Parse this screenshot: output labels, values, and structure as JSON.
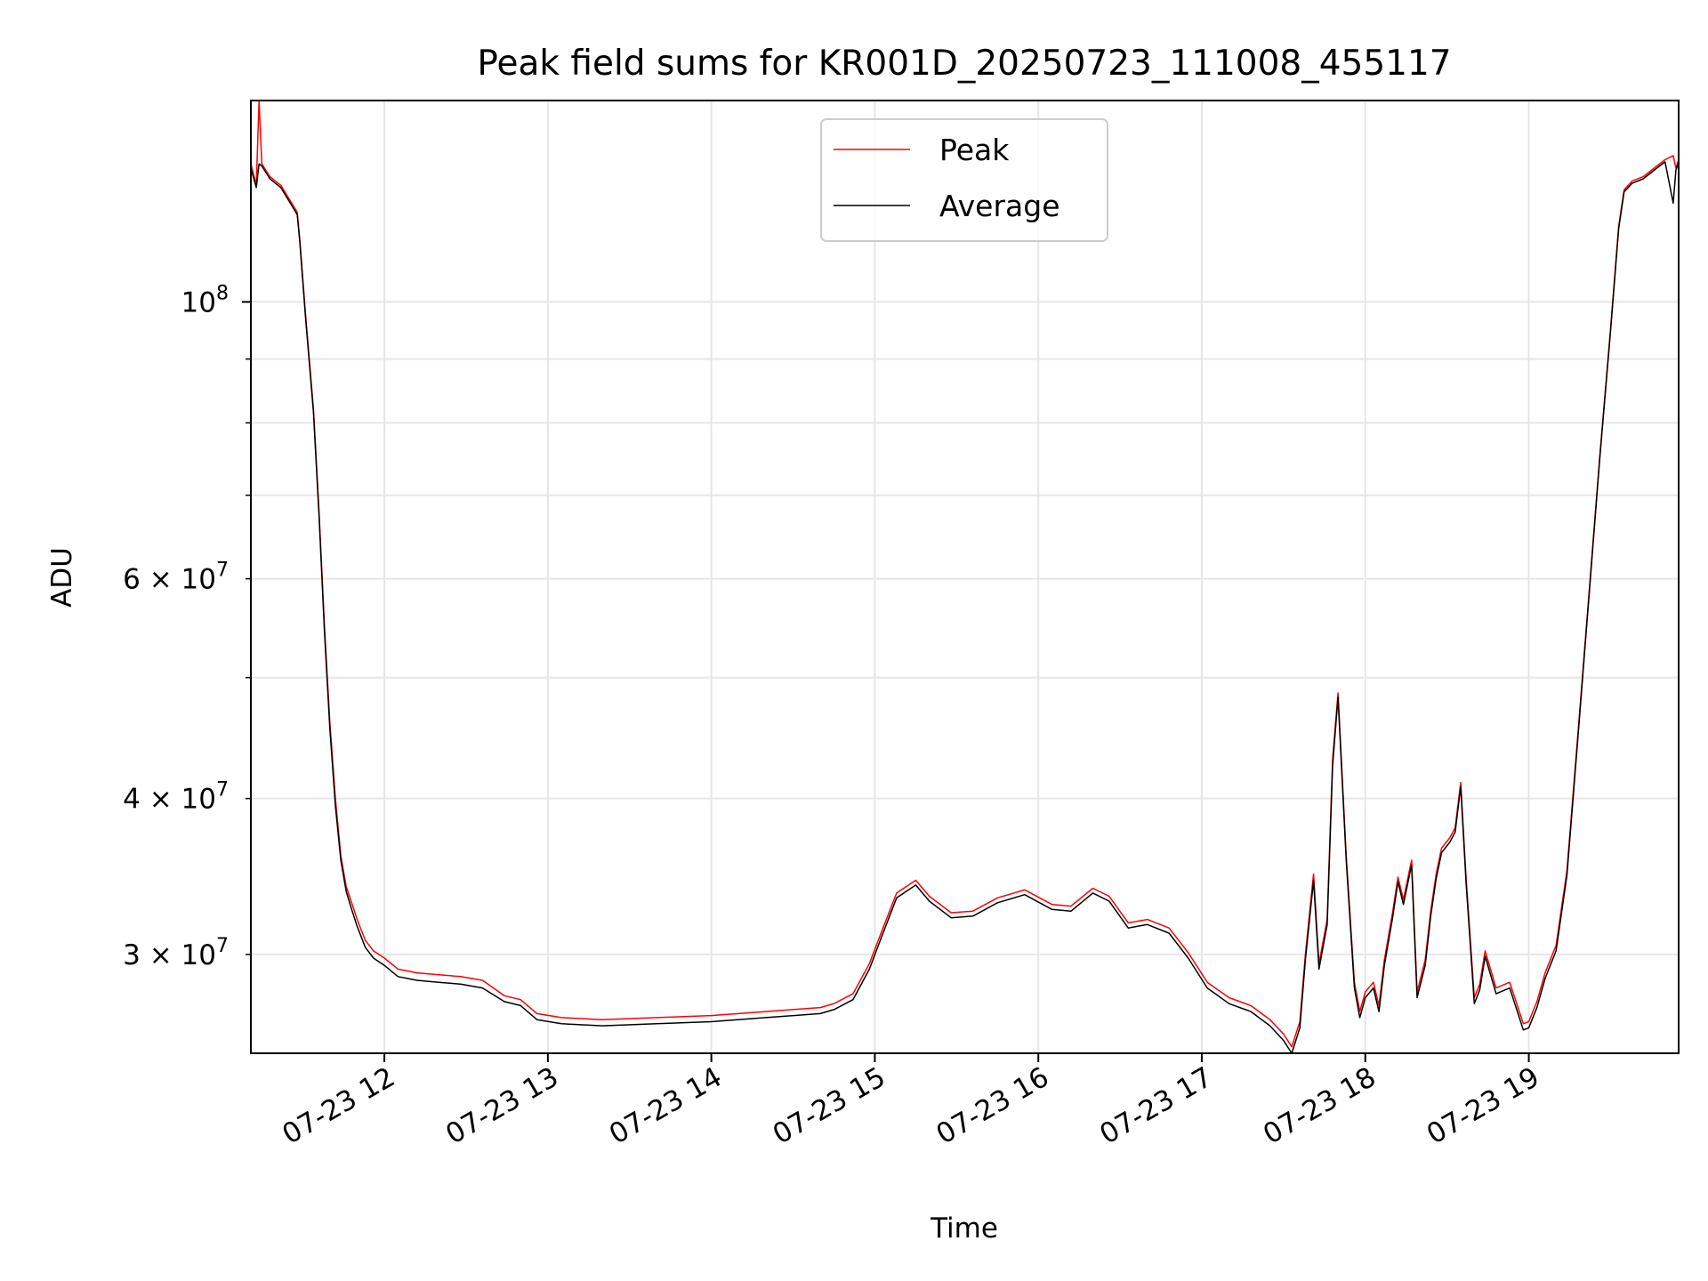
{
  "chart_data": {
    "type": "line",
    "title": "Peak field sums for KR001D_20250723_111008_455117",
    "xlabel": "Time",
    "ylabel": "ADU",
    "y_scale": "log",
    "ylim": [
      25000000,
      145000000
    ],
    "xlim": [
      "2025-07-23 11:11",
      "2025-07-23 19:55"
    ],
    "x_ticks": [
      {
        "value": "2025-07-23 12:00",
        "label": "07-23 12"
      },
      {
        "value": "2025-07-23 13:00",
        "label": "07-23 13"
      },
      {
        "value": "2025-07-23 14:00",
        "label": "07-23 14"
      },
      {
        "value": "2025-07-23 15:00",
        "label": "07-23 15"
      },
      {
        "value": "2025-07-23 16:00",
        "label": "07-23 16"
      },
      {
        "value": "2025-07-23 17:00",
        "label": "07-23 17"
      },
      {
        "value": "2025-07-23 18:00",
        "label": "07-23 18"
      },
      {
        "value": "2025-07-23 19:00",
        "label": "07-23 19"
      }
    ],
    "y_ticks_major": [
      {
        "value": 100000000,
        "base": "10",
        "exp": "8"
      }
    ],
    "y_ticks_minor": [
      {
        "value": 30000000,
        "coef": "3",
        "exp": "7"
      },
      {
        "value": 40000000,
        "coef": "4",
        "exp": "7"
      },
      {
        "value": 60000000,
        "coef": "6",
        "exp": "7"
      }
    ],
    "y_ticks_minor_unlabeled": [
      50000000,
      70000000,
      80000000,
      90000000
    ],
    "grid": true,
    "legend": {
      "position": "upper center"
    },
    "series": [
      {
        "name": "Peak",
        "color": "#ff0000",
        "x": [
          "2025-07-23 11:11",
          "2025-07-23 11:13",
          "2025-07-23 11:14",
          "2025-07-23 11:15",
          "2025-07-23 11:18",
          "2025-07-23 11:22",
          "2025-07-23 11:28",
          "2025-07-23 11:29",
          "2025-07-23 11:31",
          "2025-07-23 11:34",
          "2025-07-23 11:36",
          "2025-07-23 11:38",
          "2025-07-23 11:40",
          "2025-07-23 11:42",
          "2025-07-23 11:44",
          "2025-07-23 11:46",
          "2025-07-23 11:48",
          "2025-07-23 11:50",
          "2025-07-23 11:53",
          "2025-07-23 11:56",
          "2025-07-23 12:00",
          "2025-07-23 12:05",
          "2025-07-23 12:12",
          "2025-07-23 12:20",
          "2025-07-23 12:28",
          "2025-07-23 12:36",
          "2025-07-23 12:44",
          "2025-07-23 12:50",
          "2025-07-23 12:56",
          "2025-07-23 13:05",
          "2025-07-23 13:20",
          "2025-07-23 13:40",
          "2025-07-23 14:00",
          "2025-07-23 14:20",
          "2025-07-23 14:40",
          "2025-07-23 14:45",
          "2025-07-23 14:52",
          "2025-07-23 14:58",
          "2025-07-23 15:03",
          "2025-07-23 15:08",
          "2025-07-23 15:15",
          "2025-07-23 15:20",
          "2025-07-23 15:28",
          "2025-07-23 15:36",
          "2025-07-23 15:45",
          "2025-07-23 15:55",
          "2025-07-23 16:05",
          "2025-07-23 16:12",
          "2025-07-23 16:20",
          "2025-07-23 16:26",
          "2025-07-23 16:33",
          "2025-07-23 16:40",
          "2025-07-23 16:48",
          "2025-07-23 16:55",
          "2025-07-23 17:02",
          "2025-07-23 17:10",
          "2025-07-23 17:18",
          "2025-07-23 17:25",
          "2025-07-23 17:30",
          "2025-07-23 17:33",
          "2025-07-23 17:36",
          "2025-07-23 17:38",
          "2025-07-23 17:41",
          "2025-07-23 17:43",
          "2025-07-23 17:46",
          "2025-07-23 17:48",
          "2025-07-23 17:50",
          "2025-07-23 17:53",
          "2025-07-23 17:56",
          "2025-07-23 17:58",
          "2025-07-23 18:00",
          "2025-07-23 18:03",
          "2025-07-23 18:05",
          "2025-07-23 18:07",
          "2025-07-23 18:10",
          "2025-07-23 18:12",
          "2025-07-23 18:14",
          "2025-07-23 18:17",
          "2025-07-23 18:19",
          "2025-07-23 18:22",
          "2025-07-23 18:24",
          "2025-07-23 18:26",
          "2025-07-23 18:28",
          "2025-07-23 18:31",
          "2025-07-23 18:33",
          "2025-07-23 18:35",
          "2025-07-23 18:37",
          "2025-07-23 18:40",
          "2025-07-23 18:42",
          "2025-07-23 18:44",
          "2025-07-23 18:48",
          "2025-07-23 18:53",
          "2025-07-23 18:58",
          "2025-07-23 19:00",
          "2025-07-23 19:03",
          "2025-07-23 19:06",
          "2025-07-23 19:10",
          "2025-07-23 19:14",
          "2025-07-23 19:18",
          "2025-07-23 19:22",
          "2025-07-23 19:26",
          "2025-07-23 19:30",
          "2025-07-23 19:33",
          "2025-07-23 19:35",
          "2025-07-23 19:38",
          "2025-07-23 19:42",
          "2025-07-23 19:46",
          "2025-07-23 19:50",
          "2025-07-23 19:53",
          "2025-07-23 19:54",
          "2025-07-23 19:55"
        ],
        "y": [
          129000000,
          124000000,
          145000000,
          129000000,
          126000000,
          124000000,
          118000000,
          112000000,
          98000000,
          82000000,
          68000000,
          55000000,
          46000000,
          40000000,
          36000000,
          34000000,
          33000000,
          32000000,
          30800000,
          30200000,
          29800000,
          29200000,
          29000000,
          28900000,
          28800000,
          28600000,
          27800000,
          27600000,
          26900000,
          26700000,
          26600000,
          26700000,
          26800000,
          27000000,
          27200000,
          27400000,
          27900000,
          29500000,
          31500000,
          33600000,
          34400000,
          33400000,
          32400000,
          32500000,
          33300000,
          33800000,
          32900000,
          32800000,
          33900000,
          33400000,
          31800000,
          32000000,
          31500000,
          30100000,
          28500000,
          27700000,
          27300000,
          26600000,
          25900000,
          25300000,
          26500000,
          30000000,
          34800000,
          29500000,
          32000000,
          43000000,
          48600000,
          36000000,
          28500000,
          27000000,
          28000000,
          28500000,
          27300000,
          29700000,
          32400000,
          34600000,
          33200000,
          35700000,
          28000000,
          29700000,
          32500000,
          34800000,
          36500000,
          37200000,
          37900000,
          41200000,
          34500000,
          27700000,
          28400000,
          30200000,
          28200000,
          28500000,
          26400000,
          26500000,
          27500000,
          29000000,
          30500000,
          35000000,
          45000000,
          58000000,
          75000000,
          95000000,
          115000000,
          123000000,
          125000000,
          126000000,
          128000000,
          130000000,
          131000000,
          128000000,
          130000000
        ]
      },
      {
        "name": "Average",
        "color": "#000000",
        "x": [
          "2025-07-23 11:11",
          "2025-07-23 11:13",
          "2025-07-23 11:14",
          "2025-07-23 11:15",
          "2025-07-23 11:18",
          "2025-07-23 11:22",
          "2025-07-23 11:28",
          "2025-07-23 11:29",
          "2025-07-23 11:31",
          "2025-07-23 11:34",
          "2025-07-23 11:36",
          "2025-07-23 11:38",
          "2025-07-23 11:40",
          "2025-07-23 11:42",
          "2025-07-23 11:44",
          "2025-07-23 11:46",
          "2025-07-23 11:48",
          "2025-07-23 11:50",
          "2025-07-23 11:53",
          "2025-07-23 11:56",
          "2025-07-23 12:00",
          "2025-07-23 12:05",
          "2025-07-23 12:12",
          "2025-07-23 12:20",
          "2025-07-23 12:28",
          "2025-07-23 12:36",
          "2025-07-23 12:44",
          "2025-07-23 12:50",
          "2025-07-23 12:56",
          "2025-07-23 13:05",
          "2025-07-23 13:20",
          "2025-07-23 13:40",
          "2025-07-23 14:00",
          "2025-07-23 14:20",
          "2025-07-23 14:40",
          "2025-07-23 14:45",
          "2025-07-23 14:52",
          "2025-07-23 14:58",
          "2025-07-23 15:03",
          "2025-07-23 15:08",
          "2025-07-23 15:15",
          "2025-07-23 15:20",
          "2025-07-23 15:28",
          "2025-07-23 15:36",
          "2025-07-23 15:45",
          "2025-07-23 15:55",
          "2025-07-23 16:05",
          "2025-07-23 16:12",
          "2025-07-23 16:20",
          "2025-07-23 16:26",
          "2025-07-23 16:33",
          "2025-07-23 16:40",
          "2025-07-23 16:48",
          "2025-07-23 16:55",
          "2025-07-23 17:02",
          "2025-07-23 17:10",
          "2025-07-23 17:18",
          "2025-07-23 17:25",
          "2025-07-23 17:30",
          "2025-07-23 17:33",
          "2025-07-23 17:36",
          "2025-07-23 17:38",
          "2025-07-23 17:41",
          "2025-07-23 17:43",
          "2025-07-23 17:46",
          "2025-07-23 17:48",
          "2025-07-23 17:50",
          "2025-07-23 17:53",
          "2025-07-23 17:56",
          "2025-07-23 17:58",
          "2025-07-23 18:00",
          "2025-07-23 18:03",
          "2025-07-23 18:05",
          "2025-07-23 18:07",
          "2025-07-23 18:10",
          "2025-07-23 18:12",
          "2025-07-23 18:14",
          "2025-07-23 18:17",
          "2025-07-23 18:19",
          "2025-07-23 18:22",
          "2025-07-23 18:24",
          "2025-07-23 18:26",
          "2025-07-23 18:28",
          "2025-07-23 18:31",
          "2025-07-23 18:33",
          "2025-07-23 18:35",
          "2025-07-23 18:37",
          "2025-07-23 18:40",
          "2025-07-23 18:42",
          "2025-07-23 18:44",
          "2025-07-23 18:48",
          "2025-07-23 18:53",
          "2025-07-23 18:58",
          "2025-07-23 19:00",
          "2025-07-23 19:03",
          "2025-07-23 19:06",
          "2025-07-23 19:10",
          "2025-07-23 19:14",
          "2025-07-23 19:18",
          "2025-07-23 19:22",
          "2025-07-23 19:26",
          "2025-07-23 19:30",
          "2025-07-23 19:33",
          "2025-07-23 19:35",
          "2025-07-23 19:38",
          "2025-07-23 19:42",
          "2025-07-23 19:46",
          "2025-07-23 19:50",
          "2025-07-23 19:53",
          "2025-07-23 19:54",
          "2025-07-23 19:55"
        ],
        "y": [
          128000000,
          123500000,
          129000000,
          128500000,
          125500000,
          123500000,
          117500000,
          111500000,
          97500000,
          81500000,
          67500000,
          54500000,
          45500000,
          39500000,
          35700000,
          33700000,
          32600000,
          31600000,
          30400000,
          29800000,
          29400000,
          28800000,
          28600000,
          28500000,
          28400000,
          28200000,
          27500000,
          27300000,
          26600000,
          26400000,
          26300000,
          26400000,
          26500000,
          26700000,
          26900000,
          27100000,
          27600000,
          29200000,
          31200000,
          33300000,
          34100000,
          33100000,
          32100000,
          32200000,
          33000000,
          33500000,
          32600000,
          32500000,
          33600000,
          33100000,
          31500000,
          31700000,
          31200000,
          29800000,
          28200000,
          27400000,
          27000000,
          26300000,
          25600000,
          25000000,
          26200000,
          29700000,
          34400000,
          29200000,
          31700000,
          42500000,
          48200000,
          35700000,
          28200000,
          26700000,
          27700000,
          28200000,
          27000000,
          29400000,
          32100000,
          34300000,
          32900000,
          35400000,
          27700000,
          29400000,
          32200000,
          34500000,
          36200000,
          36900000,
          37600000,
          40900000,
          34200000,
          27400000,
          28100000,
          29900000,
          27900000,
          28200000,
          26100000,
          26200000,
          27200000,
          28700000,
          30200000,
          34700000,
          44700000,
          57700000,
          74700000,
          94700000,
          114500000,
          122500000,
          124500000,
          125500000,
          127500000,
          129500000,
          120000000,
          127500000,
          129500000
        ]
      }
    ]
  }
}
